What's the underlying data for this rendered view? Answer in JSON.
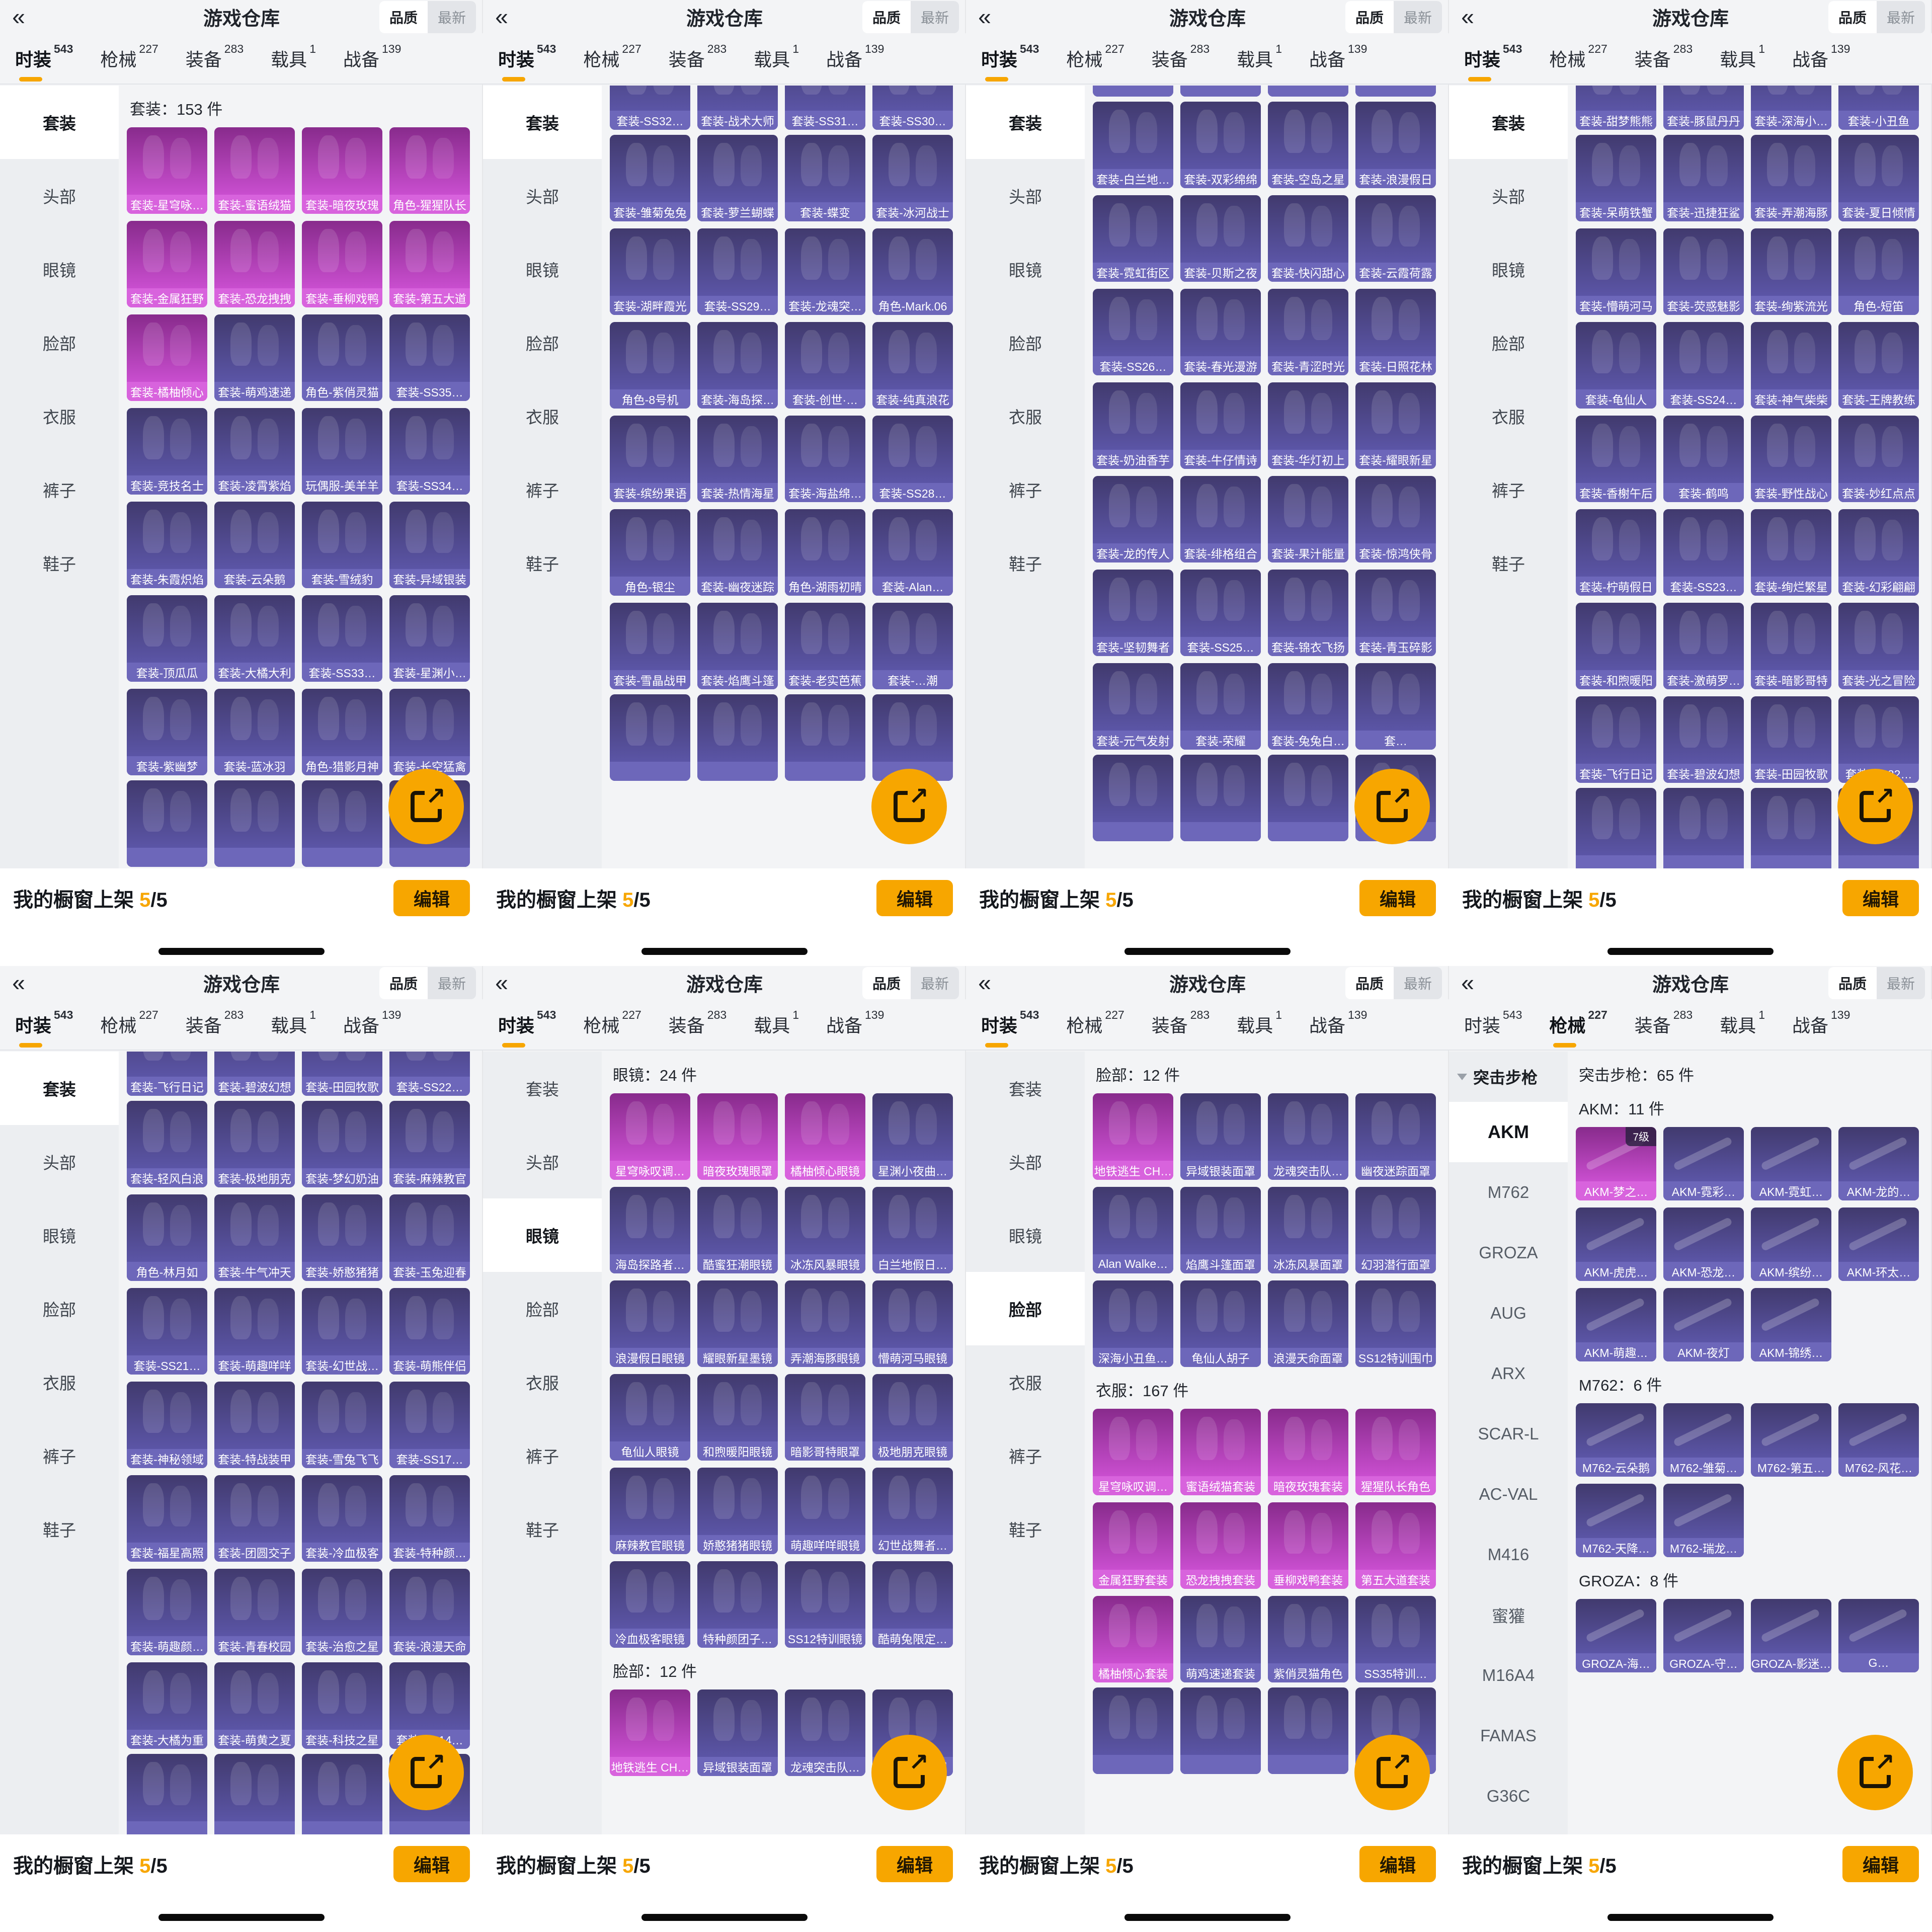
{
  "app": {
    "title": "游戏仓库",
    "back_icon": "«",
    "quality_label": "品质",
    "latest_label": "最新",
    "share_icon": "export-arrow",
    "tabs": [
      {
        "label": "时装",
        "count": "543"
      },
      {
        "label": "枪械",
        "count": "227"
      },
      {
        "label": "装备",
        "count": "283"
      },
      {
        "label": "载具",
        "count": "1"
      },
      {
        "label": "战备",
        "count": "139"
      }
    ],
    "fashion_sidebar": [
      "套装",
      "头部",
      "眼镜",
      "脸部",
      "衣服",
      "裤子",
      "鞋子"
    ],
    "bottom": {
      "shelf_label": "我的橱窗上架",
      "shelf_count": "5",
      "shelf_total": "/5",
      "edit_label": "编辑"
    },
    "colors": {
      "accent": "#F7A600",
      "card_purple_top": "#413A6E",
      "card_purple_bottom": "#5B55A6",
      "card_purple_strip": "#6D67BA",
      "card_magenta_top": "#882B8C",
      "card_magenta_bottom": "#C94ECF",
      "card_magenta_strip": "#D863DD",
      "page_bg": "#F3F4F6"
    }
  },
  "panels": [
    {
      "active_tab": 0,
      "sidebar": "fashion",
      "sidebar_active": 0,
      "sections": [
        {
          "header": "套装：153 件",
          "items": [
            {
              "label": "套装-星穹咏…",
              "q": "m"
            },
            {
              "label": "套装-蜜语绒猫",
              "q": "m"
            },
            {
              "label": "套装-暗夜玫瑰",
              "q": "m"
            },
            {
              "label": "角色-猩猩队长",
              "q": "m"
            },
            {
              "label": "套装-金属狂野",
              "q": "m"
            },
            {
              "label": "套装-恐龙拽拽",
              "q": "m"
            },
            {
              "label": "套装-垂柳戏鸭",
              "q": "m"
            },
            {
              "label": "套装-第五大道",
              "q": "m"
            },
            {
              "label": "套装-橘柚倾心",
              "q": "m"
            },
            {
              "label": "套装-萌鸡速递"
            },
            {
              "label": "角色-紫俏灵猫"
            },
            {
              "label": "套装-SS35…"
            },
            {
              "label": "套装-竞技名士"
            },
            {
              "label": "套装-凌霄紫焰"
            },
            {
              "label": "玩偶服-美羊羊"
            },
            {
              "label": "套装-SS34…"
            },
            {
              "label": "套装-朱霞炽焰"
            },
            {
              "label": "套装-云朵鹅"
            },
            {
              "label": "套装-雪绒豹"
            },
            {
              "label": "套装-异域银装"
            },
            {
              "label": "套装-顶瓜瓜"
            },
            {
              "label": "套装-大橘大利"
            },
            {
              "label": "套装-SS33…"
            },
            {
              "label": "套装-星渊小…"
            },
            {
              "label": "套装-紫幽梦"
            },
            {
              "label": "套装-蓝冰羽"
            },
            {
              "label": "角色-猎影月神"
            },
            {
              "label": "套装-长空猛禽"
            }
          ]
        },
        {
          "items": [
            {
              "label": ""
            },
            {
              "label": ""
            },
            {
              "label": ""
            },
            {
              "label": ""
            }
          ]
        }
      ]
    },
    {
      "active_tab": 0,
      "sidebar": "fashion",
      "sidebar_active": 0,
      "sections": [
        {
          "cut": -84,
          "items": [
            {
              "label": "套装-SS32…"
            },
            {
              "label": "套装-战术大师"
            },
            {
              "label": "套装-SS31…"
            },
            {
              "label": "套装-SS30…"
            }
          ]
        },
        {
          "items": [
            {
              "label": "套装-雏菊兔兔"
            },
            {
              "label": "套装-萝兰蝴蝶"
            },
            {
              "label": "套装-蝶变"
            },
            {
              "label": "套装-冰河战士"
            },
            {
              "label": "套装-湖畔霞光"
            },
            {
              "label": "套装-SS29…"
            },
            {
              "label": "套装-龙魂突…"
            },
            {
              "label": "角色-Mark.06"
            },
            {
              "label": "角色-8号机"
            },
            {
              "label": "套装-海岛探…"
            },
            {
              "label": "套装-创世·…"
            },
            {
              "label": "套装-纯真浪花"
            },
            {
              "label": "套装-缤纷果语"
            },
            {
              "label": "套装-热情海星"
            },
            {
              "label": "套装-海盐绵…"
            },
            {
              "label": "套装-SS28…"
            },
            {
              "label": "角色-银尘"
            },
            {
              "label": "套装-幽夜迷踪"
            },
            {
              "label": "角色-湖雨初晴"
            },
            {
              "label": "套装-Alan…"
            },
            {
              "label": "套装-雪晶战甲"
            },
            {
              "label": "套装-焰鹰斗篷"
            },
            {
              "label": "套装-老实芭蕉"
            },
            {
              "label": "套装-…潮"
            }
          ]
        },
        {
          "items": [
            {
              "label": ""
            },
            {
              "label": ""
            },
            {
              "label": ""
            },
            {
              "label": ""
            }
          ]
        }
      ]
    },
    {
      "active_tab": 0,
      "sidebar": "fashion",
      "sidebar_active": 0,
      "sections": [
        {
          "cut": -150,
          "items": [
            {
              "label": ""
            },
            {
              "label": ""
            },
            {
              "label": ""
            },
            {
              "label": ""
            }
          ]
        },
        {
          "items": [
            {
              "label": "套装-白兰地…"
            },
            {
              "label": "套装-双彩绵绵"
            },
            {
              "label": "套装-空岛之星"
            },
            {
              "label": "套装-浪漫假日"
            },
            {
              "label": "套装-霓虹街区"
            },
            {
              "label": "套装-贝斯之夜"
            },
            {
              "label": "套装-快闪甜心"
            },
            {
              "label": "套装-云霞荷露"
            },
            {
              "label": "套装-SS26…"
            },
            {
              "label": "套装-春光漫游"
            },
            {
              "label": "套装-青涩时光"
            },
            {
              "label": "套装-日照花林"
            },
            {
              "label": "套装-奶油香芋"
            },
            {
              "label": "套装-牛仔情诗"
            },
            {
              "label": "套装-华灯初上"
            },
            {
              "label": "套装-耀眼新星"
            },
            {
              "label": "套装-龙的传人"
            },
            {
              "label": "套装-绯格组合"
            },
            {
              "label": "套装-果汁能量"
            },
            {
              "label": "套装-惊鸿侠骨"
            },
            {
              "label": "套装-坚韧舞者"
            },
            {
              "label": "套装-SS25…"
            },
            {
              "label": "套装-锦衣飞扬"
            },
            {
              "label": "套装-青玉碎影"
            },
            {
              "label": "套装-元气发射"
            },
            {
              "label": "套装-荣耀"
            },
            {
              "label": "套装-兔兔白…"
            },
            {
              "label": "套…"
            }
          ]
        },
        {
          "items": [
            {
              "label": ""
            },
            {
              "label": ""
            },
            {
              "label": ""
            },
            {
              "label": ""
            }
          ]
        }
      ]
    },
    {
      "active_tab": 0,
      "sidebar": "fashion",
      "sidebar_active": 0,
      "sections": [
        {
          "cut": -84,
          "items": [
            {
              "label": "套装-甜梦熊熊"
            },
            {
              "label": "套装-豚鼠丹丹"
            },
            {
              "label": "套装-深海小…"
            },
            {
              "label": "套装-小丑鱼"
            }
          ]
        },
        {
          "items": [
            {
              "label": "套装-呆萌铁蟹"
            },
            {
              "label": "套装-迅捷狂鲨"
            },
            {
              "label": "套装-弄潮海豚"
            },
            {
              "label": "套装-夏日倾情"
            },
            {
              "label": "套装-懵萌河马"
            },
            {
              "label": "套装-荧惑魅影"
            },
            {
              "label": "套装-绚紫流光"
            },
            {
              "label": "角色-短笛"
            },
            {
              "label": "套装-龟仙人"
            },
            {
              "label": "套装-SS24…"
            },
            {
              "label": "套装-神气柴柴"
            },
            {
              "label": "套装-王牌教练"
            },
            {
              "label": "套装-香榭午后"
            },
            {
              "label": "套装-鹤鸣"
            },
            {
              "label": "套装-野性战心"
            },
            {
              "label": "套装-妙红点点"
            },
            {
              "label": "套装-柠萌假日"
            },
            {
              "label": "套装-SS23…"
            },
            {
              "label": "套装-绚烂繁星"
            },
            {
              "label": "套装-幻彩翩翩"
            },
            {
              "label": "套装-和煦暖阳"
            },
            {
              "label": "套装-激萌罗…"
            },
            {
              "label": "套装-暗影哥特"
            },
            {
              "label": "套装-光之冒险"
            },
            {
              "label": "套装-飞行日记"
            },
            {
              "label": "套装-碧波幻想"
            },
            {
              "label": "套装-田园牧歌"
            },
            {
              "label": "套装-SS22…"
            }
          ]
        },
        {
          "items": [
            {
              "label": ""
            },
            {
              "label": ""
            },
            {
              "label": ""
            },
            {
              "label": ""
            }
          ]
        }
      ]
    },
    {
      "active_tab": 0,
      "sidebar": "fashion",
      "sidebar_active": 0,
      "sections": [
        {
          "cut": -84,
          "items": [
            {
              "label": "套装-飞行日记"
            },
            {
              "label": "套装-碧波幻想"
            },
            {
              "label": "套装-田园牧歌"
            },
            {
              "label": "套装-SS22…"
            }
          ]
        },
        {
          "items": [
            {
              "label": "套装-轻风白浪"
            },
            {
              "label": "套装-极地朋克"
            },
            {
              "label": "套装-梦幻奶油"
            },
            {
              "label": "套装-麻辣教官"
            },
            {
              "label": "角色-林月如"
            },
            {
              "label": "套装-牛气冲天"
            },
            {
              "label": "套装-娇憨猪猪"
            },
            {
              "label": "套装-玉兔迎春"
            },
            {
              "label": "套装-SS21…"
            },
            {
              "label": "套装-萌趣咩咩"
            },
            {
              "label": "套装-幻世战…"
            },
            {
              "label": "套装-萌熊伴侣"
            },
            {
              "label": "套装-神秘领域"
            },
            {
              "label": "套装-特战装甲"
            },
            {
              "label": "套装-雪兔飞飞"
            },
            {
              "label": "套装-SS17…"
            },
            {
              "label": "套装-福星高照"
            },
            {
              "label": "套装-团圆交子"
            },
            {
              "label": "套装-冷血极客"
            },
            {
              "label": "套装-特种颜…"
            },
            {
              "label": "套装-萌趣颜…"
            },
            {
              "label": "套装-青春校园"
            },
            {
              "label": "套装-治愈之星"
            },
            {
              "label": "套装-浪漫天命"
            },
            {
              "label": "套装-大橘为重"
            },
            {
              "label": "套装-萌黄之夏"
            },
            {
              "label": "套装-科技之星"
            },
            {
              "label": "套装-SS14…"
            }
          ]
        },
        {
          "items": [
            {
              "label": ""
            },
            {
              "label": ""
            },
            {
              "label": ""
            },
            {
              "label": ""
            }
          ]
        }
      ]
    },
    {
      "active_tab": 0,
      "sidebar": "fashion",
      "sidebar_active": 2,
      "sections": [
        {
          "header": "眼镜：24 件",
          "items": [
            {
              "label": "星穹咏叹调…",
              "q": "m"
            },
            {
              "label": "暗夜玫瑰眼罩",
              "q": "m"
            },
            {
              "label": "橘柚倾心眼镜",
              "q": "m"
            },
            {
              "label": "星渊小夜曲…"
            },
            {
              "label": "海岛探路者…"
            },
            {
              "label": "酷蜜狂潮眼镜"
            },
            {
              "label": "冰冻风暴眼镜"
            },
            {
              "label": "白兰地假日…"
            },
            {
              "label": "浪漫假日眼镜"
            },
            {
              "label": "耀眼新星墨镜"
            },
            {
              "label": "弄潮海豚眼镜"
            },
            {
              "label": "懵萌河马眼镜"
            },
            {
              "label": "龟仙人眼镜"
            },
            {
              "label": "和煦暖阳眼镜"
            },
            {
              "label": "暗影哥特眼罩"
            },
            {
              "label": "极地朋克眼镜"
            },
            {
              "label": "麻辣教官眼镜"
            },
            {
              "label": "娇憨猪猪眼镜"
            },
            {
              "label": "萌趣咩咩眼镜"
            },
            {
              "label": "幻世战舞者…"
            },
            {
              "label": "冷血极客眼镜"
            },
            {
              "label": "特种颜团子…"
            },
            {
              "label": "SS12特训眼镜"
            },
            {
              "label": "酷萌兔限定…"
            }
          ]
        },
        {
          "header": "脸部：12 件",
          "items": [
            {
              "label": "地铁逃生 CH…",
              "q": "m"
            },
            {
              "label": "异域银装面罩"
            },
            {
              "label": "龙魂突击队…"
            },
            {
              "label": "幽夜迷踪面罩"
            }
          ]
        }
      ]
    },
    {
      "active_tab": 0,
      "sidebar": "fashion",
      "sidebar_active": 3,
      "sections": [
        {
          "header": "脸部：12 件",
          "items": [
            {
              "label": "地铁逃生 CH…",
              "q": "m"
            },
            {
              "label": "异域银装面罩"
            },
            {
              "label": "龙魂突击队…"
            },
            {
              "label": "幽夜迷踪面罩"
            },
            {
              "label": "Alan Walke…"
            },
            {
              "label": "焰鹰斗篷面罩"
            },
            {
              "label": "冰冻风暴面罩"
            },
            {
              "label": "幻羽潜行面罩"
            },
            {
              "label": "深海小丑鱼…"
            },
            {
              "label": "龟仙人胡子"
            },
            {
              "label": "浪漫天命面罩"
            },
            {
              "label": "SS12特训围巾"
            }
          ]
        },
        {
          "header": "衣服：167 件",
          "items": [
            {
              "label": "星穹咏叹调…",
              "q": "m"
            },
            {
              "label": "蜜语绒猫套装",
              "q": "m"
            },
            {
              "label": "暗夜玫瑰套装",
              "q": "m"
            },
            {
              "label": "猩猩队长角色",
              "q": "m"
            },
            {
              "label": "金属狂野套装",
              "q": "m"
            },
            {
              "label": "恐龙拽拽套装",
              "q": "m"
            },
            {
              "label": "垂柳戏鸭套装",
              "q": "m"
            },
            {
              "label": "第五大道套装",
              "q": "m"
            },
            {
              "label": "橘柚倾心套装",
              "q": "m"
            },
            {
              "label": "萌鸡速递套装"
            },
            {
              "label": "紫俏灵猫角色"
            },
            {
              "label": "SS35特训…"
            }
          ]
        },
        {
          "items": [
            {
              "label": ""
            },
            {
              "label": ""
            },
            {
              "label": ""
            },
            {
              "label": ""
            }
          ]
        }
      ]
    },
    {
      "active_tab": 1,
      "sidebar": "weapon",
      "weapon_sidebar": {
        "group": "突击步枪",
        "active": 0,
        "items": [
          "AKM",
          "M762",
          "GROZA",
          "AUG",
          "ARX",
          "SCAR-L",
          "AC-VAL",
          "M416",
          "蜜獾",
          "M16A4",
          "FAMAS",
          "G36C"
        ]
      },
      "sections": [
        {
          "header": "突击步枪：65 件",
          "items": []
        },
        {
          "header": "AKM：11 件",
          "gun": true,
          "items": [
            {
              "label": "AKM-梦之…",
              "q": "m",
              "badge": "7级"
            },
            {
              "label": "AKM-霓彩…"
            },
            {
              "label": "AKM-霓虹…"
            },
            {
              "label": "AKM-龙的…"
            },
            {
              "label": "AKM-虎虎…"
            },
            {
              "label": "AKM-恐龙…"
            },
            {
              "label": "AKM-缤纷…"
            },
            {
              "label": "AKM-环太…"
            },
            {
              "label": "AKM-萌趣…"
            },
            {
              "label": "AKM-夜灯"
            },
            {
              "label": "AKM-锦绣…"
            }
          ]
        },
        {
          "header": "M762：6 件",
          "gun": true,
          "items": [
            {
              "label": "M762-云朵鹅"
            },
            {
              "label": "M762-雏菊…"
            },
            {
              "label": "M762-第五…"
            },
            {
              "label": "M762-风花…"
            },
            {
              "label": "M762-天降…"
            },
            {
              "label": "M762-瑞龙…"
            }
          ]
        },
        {
          "header": "GROZA：8 件",
          "gun": true,
          "items": [
            {
              "label": "GROZA-海…"
            },
            {
              "label": "GROZA-守…"
            },
            {
              "label": "GROZA-影迷…"
            },
            {
              "label": "G…"
            }
          ]
        }
      ]
    }
  ]
}
